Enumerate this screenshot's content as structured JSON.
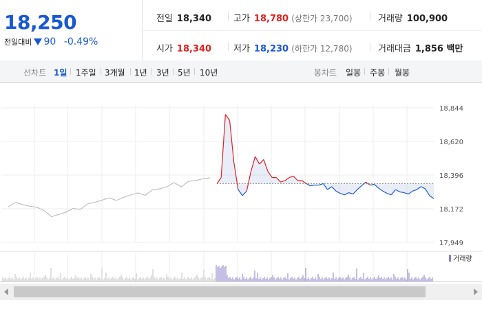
{
  "price": {
    "current": "18,250",
    "compare_label": "전일대비",
    "change": "90",
    "change_pct": "-0.49%"
  },
  "stats": {
    "prev_close": {
      "label": "전일",
      "value": "18,340"
    },
    "high": {
      "label": "고가",
      "value": "18,780",
      "limit_text": "(상한가 23,700)"
    },
    "volume": {
      "label": "거래량",
      "value": "100,900"
    },
    "open": {
      "label": "시가",
      "value": "18,340"
    },
    "low": {
      "label": "저가",
      "value": "18,230",
      "limit_text": "(하한가 12,780)"
    },
    "amount": {
      "label": "거래대금",
      "value": "1,856 백만"
    }
  },
  "tabs": {
    "line_label": "선차트",
    "line": [
      "1일",
      "1주일",
      "3개월",
      "1년",
      "3년",
      "5년",
      "10년"
    ],
    "selected": "1일",
    "candle_label": "봉차트",
    "candle": [
      "일봉",
      "주봉",
      "월봉"
    ]
  },
  "chart_data": {
    "type": "line",
    "y_ticks": [
      "18,844",
      "18,620",
      "18,396",
      "18,172",
      "17,949"
    ],
    "ylim": [
      17949,
      18844
    ],
    "reference_line": 18340,
    "legend": "거래량",
    "colors": {
      "up": "#e02020",
      "down": "#1958d3",
      "previous": "#b5b5b5",
      "volume": "#8b7fc8"
    },
    "previous_day": [
      18185,
      18215,
      18200,
      18190,
      18182,
      18160,
      18120,
      18135,
      18150,
      18175,
      18168,
      18205,
      18215,
      18230,
      18245,
      18228,
      18248,
      18265,
      18278,
      18262,
      18298,
      18305,
      18318,
      18347,
      18318,
      18355,
      18360,
      18372,
      18378
    ],
    "today": [
      18340,
      18380,
      18800,
      18760,
      18480,
      18300,
      18260,
      18290,
      18420,
      18520,
      18470,
      18500,
      18420,
      18380,
      18380,
      18350,
      18360,
      18380,
      18390,
      18360,
      18360,
      18340,
      18325,
      18330,
      18330,
      18340,
      18300,
      18320,
      18290,
      18275,
      18265,
      18280,
      18270,
      18300,
      18325,
      18350,
      18330,
      18335,
      18310,
      18290,
      18275,
      18265,
      18300,
      18285,
      18280,
      18270,
      18290,
      18300,
      18320,
      18305,
      18260,
      18240
    ]
  }
}
